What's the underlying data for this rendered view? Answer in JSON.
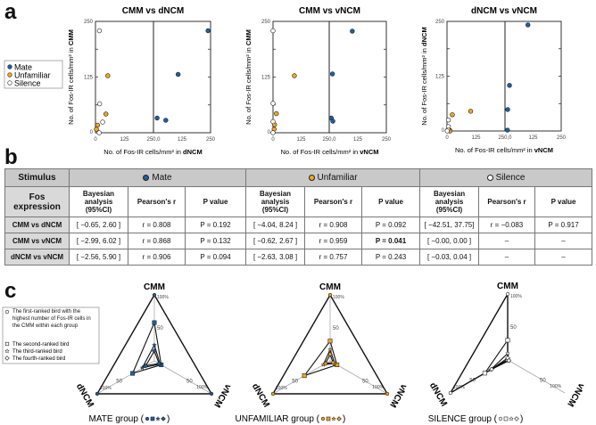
{
  "panel_labels": {
    "a": "a",
    "b": "b",
    "c": "c"
  },
  "colors": {
    "mate": "#1f5fa0",
    "unfamiliar": "#f0a820",
    "silence": "#ffffff"
  },
  "legend_a": {
    "items": [
      "Mate",
      "Unfamiliar",
      "Silence"
    ]
  },
  "chart_data": [
    {
      "type": "scatter",
      "title": "CMM vs dNCM",
      "xlabel_prefix": "No. of Fos-IR cells/mm² in ",
      "xlabel_region": "dNCM",
      "ylabel_prefix": "No. of Fos-IR cells/mm² in ",
      "ylabel_region": "CMM",
      "xlim": [
        0,
        250
      ],
      "ylim": [
        0,
        250
      ],
      "split_x_axis": true,
      "xticks": [
        "0",
        "125",
        "250,0",
        "125",
        "250"
      ],
      "yticks": [
        "0",
        "125",
        "250"
      ],
      "series": [
        {
          "name": "Mate",
          "half": "right",
          "points": [
            [
              16,
              33
            ],
            [
              54,
              28
            ],
            [
              108,
              131
            ],
            [
              239,
              229
            ]
          ]
        },
        {
          "name": "Unfamiliar",
          "half": "left",
          "points": [
            [
              53,
              128
            ],
            [
              45,
              42
            ],
            [
              9,
              17
            ],
            [
              4,
              8
            ]
          ]
        },
        {
          "name": "Silence",
          "half": "left",
          "points": [
            [
              17,
              229
            ],
            [
              18,
              65
            ],
            [
              31,
              24
            ],
            [
              16,
              0
            ]
          ]
        }
      ]
    },
    {
      "type": "scatter",
      "title": "CMM vs vNCM",
      "xlabel_prefix": "No. of Fos-IR cells/mm² in ",
      "xlabel_region": "vNCM",
      "ylabel_prefix": "No. of Fos-IR cells/mm² in ",
      "ylabel_region": "CMM",
      "xlim": [
        0,
        250
      ],
      "ylim": [
        0,
        250
      ],
      "split_x_axis": true,
      "xticks": [
        "0",
        "125",
        "250,0",
        "125",
        "250"
      ],
      "yticks": [
        "0",
        "125",
        "250"
      ],
      "series": [
        {
          "name": "Mate",
          "half": "right",
          "points": [
            [
              14,
              132
            ],
            [
              9,
              33
            ],
            [
              16,
              26
            ],
            [
              101,
              228
            ]
          ]
        },
        {
          "name": "Unfamiliar",
          "half": "left",
          "points": [
            [
              95,
              128
            ],
            [
              15,
              43
            ],
            [
              7,
              18
            ],
            [
              5,
              8
            ]
          ]
        },
        {
          "name": "Silence",
          "half": "left",
          "points": [
            [
              0,
              229
            ],
            [
              0,
              66
            ],
            [
              0,
              25
            ],
            [
              0,
              0
            ]
          ]
        }
      ]
    },
    {
      "type": "scatter",
      "title": "dNCM vs vNCM",
      "xlabel_prefix": "No. of Fos-IR cells/mm² in ",
      "xlabel_region": "vNCM",
      "ylabel_prefix": "No. of Fos-IR cells/mm² in ",
      "ylabel_region": "dNCM",
      "xlim": [
        0,
        250
      ],
      "ylim": [
        0,
        250
      ],
      "split_x_axis": true,
      "xticks": [
        "0",
        "125",
        "250,0",
        "125",
        "250"
      ],
      "yticks": [
        "0",
        "125",
        "250"
      ],
      "series": [
        {
          "name": "Mate",
          "half": "right",
          "points": [
            [
              11,
              2
            ],
            [
              12,
              49
            ],
            [
              20,
              104
            ],
            [
              102,
              242
            ]
          ]
        },
        {
          "name": "Unfamiliar",
          "half": "left",
          "points": [
            [
              102,
              45
            ],
            [
              23,
              37
            ],
            [
              13,
              1
            ],
            [
              13,
              0
            ]
          ]
        },
        {
          "name": "Silence",
          "half": "left",
          "points": [
            [
              6,
              25
            ],
            [
              6,
              10
            ],
            [
              4,
              3
            ],
            [
              1,
              0
            ]
          ]
        }
      ]
    },
    {
      "type": "radar",
      "group_label": "MATE group (",
      "group_label_end": " )",
      "axes": [
        "CMM",
        "dNCM",
        "vNCM"
      ],
      "axis_max_label": "100%",
      "axis_mid_label": "50",
      "birds": [
        {
          "rank": 1,
          "marker": "circle",
          "values": [
            100,
            100,
            100
          ]
        },
        {
          "rank": 2,
          "marker": "square",
          "values": [
            58,
            38,
            12
          ]
        },
        {
          "rank": 3,
          "marker": "star",
          "values": [
            24,
            21,
            10
          ]
        },
        {
          "rank": 4,
          "marker": "diamond",
          "values": [
            15,
            15,
            8
          ]
        }
      ]
    },
    {
      "type": "radar",
      "group_label": "UNFAMILIAR group (",
      "group_label_end": " )",
      "axes": [
        "CMM",
        "dNCM",
        "vNCM"
      ],
      "axis_max_label": "100%",
      "axis_mid_label": "50",
      "birds": [
        {
          "rank": 1,
          "marker": "circle",
          "values": [
            100,
            100,
            100
          ]
        },
        {
          "rank": 2,
          "marker": "square",
          "values": [
            30,
            45,
            12
          ]
        },
        {
          "rank": 3,
          "marker": "star",
          "values": [
            17,
            12,
            8
          ]
        },
        {
          "rank": 4,
          "marker": "diamond",
          "values": [
            10,
            8,
            5
          ]
        }
      ]
    },
    {
      "type": "radar",
      "group_label": "SILENCE group (",
      "group_label_end": " )",
      "axes": [
        "CMM",
        "dNCM",
        "vNCM"
      ],
      "axis_max_label": "100%",
      "axis_mid_label": "50",
      "birds": [
        {
          "rank": 1,
          "marker": "circle",
          "values": [
            100,
            100,
            0
          ]
        },
        {
          "rank": 2,
          "marker": "square",
          "values": [
            30,
            40,
            0
          ]
        },
        {
          "rank": 3,
          "marker": "star",
          "values": [
            10,
            30,
            2
          ]
        },
        {
          "rank": 4,
          "marker": "diamond",
          "values": [
            3,
            28,
            2
          ]
        }
      ]
    }
  ],
  "legend_c": {
    "items": [
      "The first-ranked bird with the highest number of Fos-IR cells in the CMM within each group",
      "The second-ranked bird",
      "The third-ranked bird",
      "The fourth-ranked bird"
    ]
  },
  "table": {
    "stimulus_label": "Stimulus",
    "fos_label": "Fos expression",
    "groups": [
      "Mate",
      "Unfamiliar",
      "Silence"
    ],
    "subheaders": [
      "Bayesian analysis (95%CI)",
      "Pearson's r",
      "P value"
    ],
    "rows": [
      {
        "label": "CMM vs dNCM",
        "cells": [
          "[ −0.65, 2.60 ]",
          "r = 0.808",
          "P = 0.192",
          "[ −4.04, 8.24 ]",
          "r = 0.908",
          "P = 0.092",
          "[ −42.51, 37.75]",
          "r = −0.083",
          "P = 0.917"
        ]
      },
      {
        "label": "CMM vs vNCM",
        "cells": [
          "[ −2.99, 6.02 ]",
          "r = 0.868",
          "P = 0.132",
          "[ −0.62, 2.67 ]",
          "r = 0.959",
          "P = 0.041",
          "[ −0.00, 0.00 ]",
          "–",
          "–"
        ]
      },
      {
        "label": "dNCM vs vNCM",
        "cells": [
          "[ −2.56, 5.90 ]",
          "r = 0.906",
          "P = 0.094",
          "[ −2.63, 3.08 ]",
          "r = 0.757",
          "P = 0.243",
          "[ −0.03, 0.04 ]",
          "–",
          "–"
        ]
      }
    ]
  }
}
